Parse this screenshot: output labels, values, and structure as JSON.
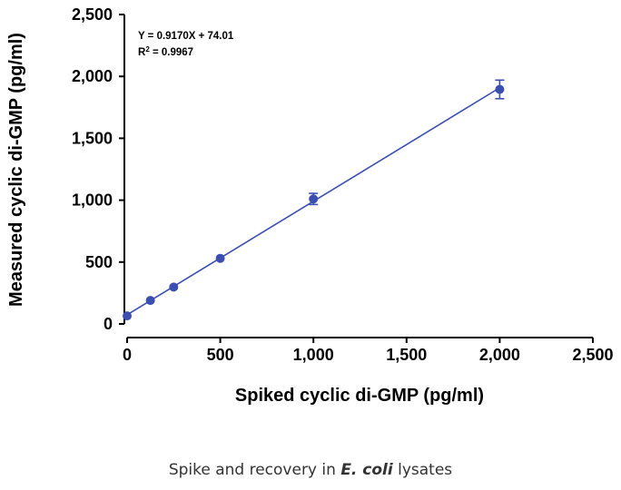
{
  "chart_data": {
    "type": "scatter",
    "xlabel": "Spiked cyclic di-GMP (pg/ml)",
    "ylabel": "Measured cyclic di-GMP (pg/ml)",
    "xlim": [
      0,
      2500
    ],
    "ylim": [
      0,
      2500
    ],
    "xticks": [
      "0",
      "500",
      "1,000",
      "1,500",
      "2,000",
      "2,500"
    ],
    "yticks": [
      "0",
      "500",
      "1,000",
      "1,500",
      "2,000",
      "2,500"
    ],
    "xtick_values": [
      0,
      500,
      1000,
      1500,
      2000,
      2500
    ],
    "ytick_values": [
      0,
      500,
      1000,
      1500,
      2000,
      2500
    ],
    "points": [
      {
        "x": 0,
        "y": 65,
        "err": 0
      },
      {
        "x": 125,
        "y": 190,
        "err": 0
      },
      {
        "x": 250,
        "y": 298,
        "err": 0
      },
      {
        "x": 500,
        "y": 530,
        "err": 0
      },
      {
        "x": 1000,
        "y": 1010,
        "err": 45
      },
      {
        "x": 2000,
        "y": 1895,
        "err": 75
      }
    ],
    "fit": {
      "slope": 0.917,
      "intercept": 74.01,
      "x_range": [
        0,
        2000
      ]
    },
    "equation": "Y = 0.9170X + 74.01",
    "r2": {
      "prefix": "R",
      "sup": "2",
      "suffix": " = 0.9967"
    },
    "grid": false,
    "color": "#3a4fb0"
  },
  "caption": {
    "before": "Spike and recovery in ",
    "italic": "E. coli",
    "after": " lysates"
  }
}
